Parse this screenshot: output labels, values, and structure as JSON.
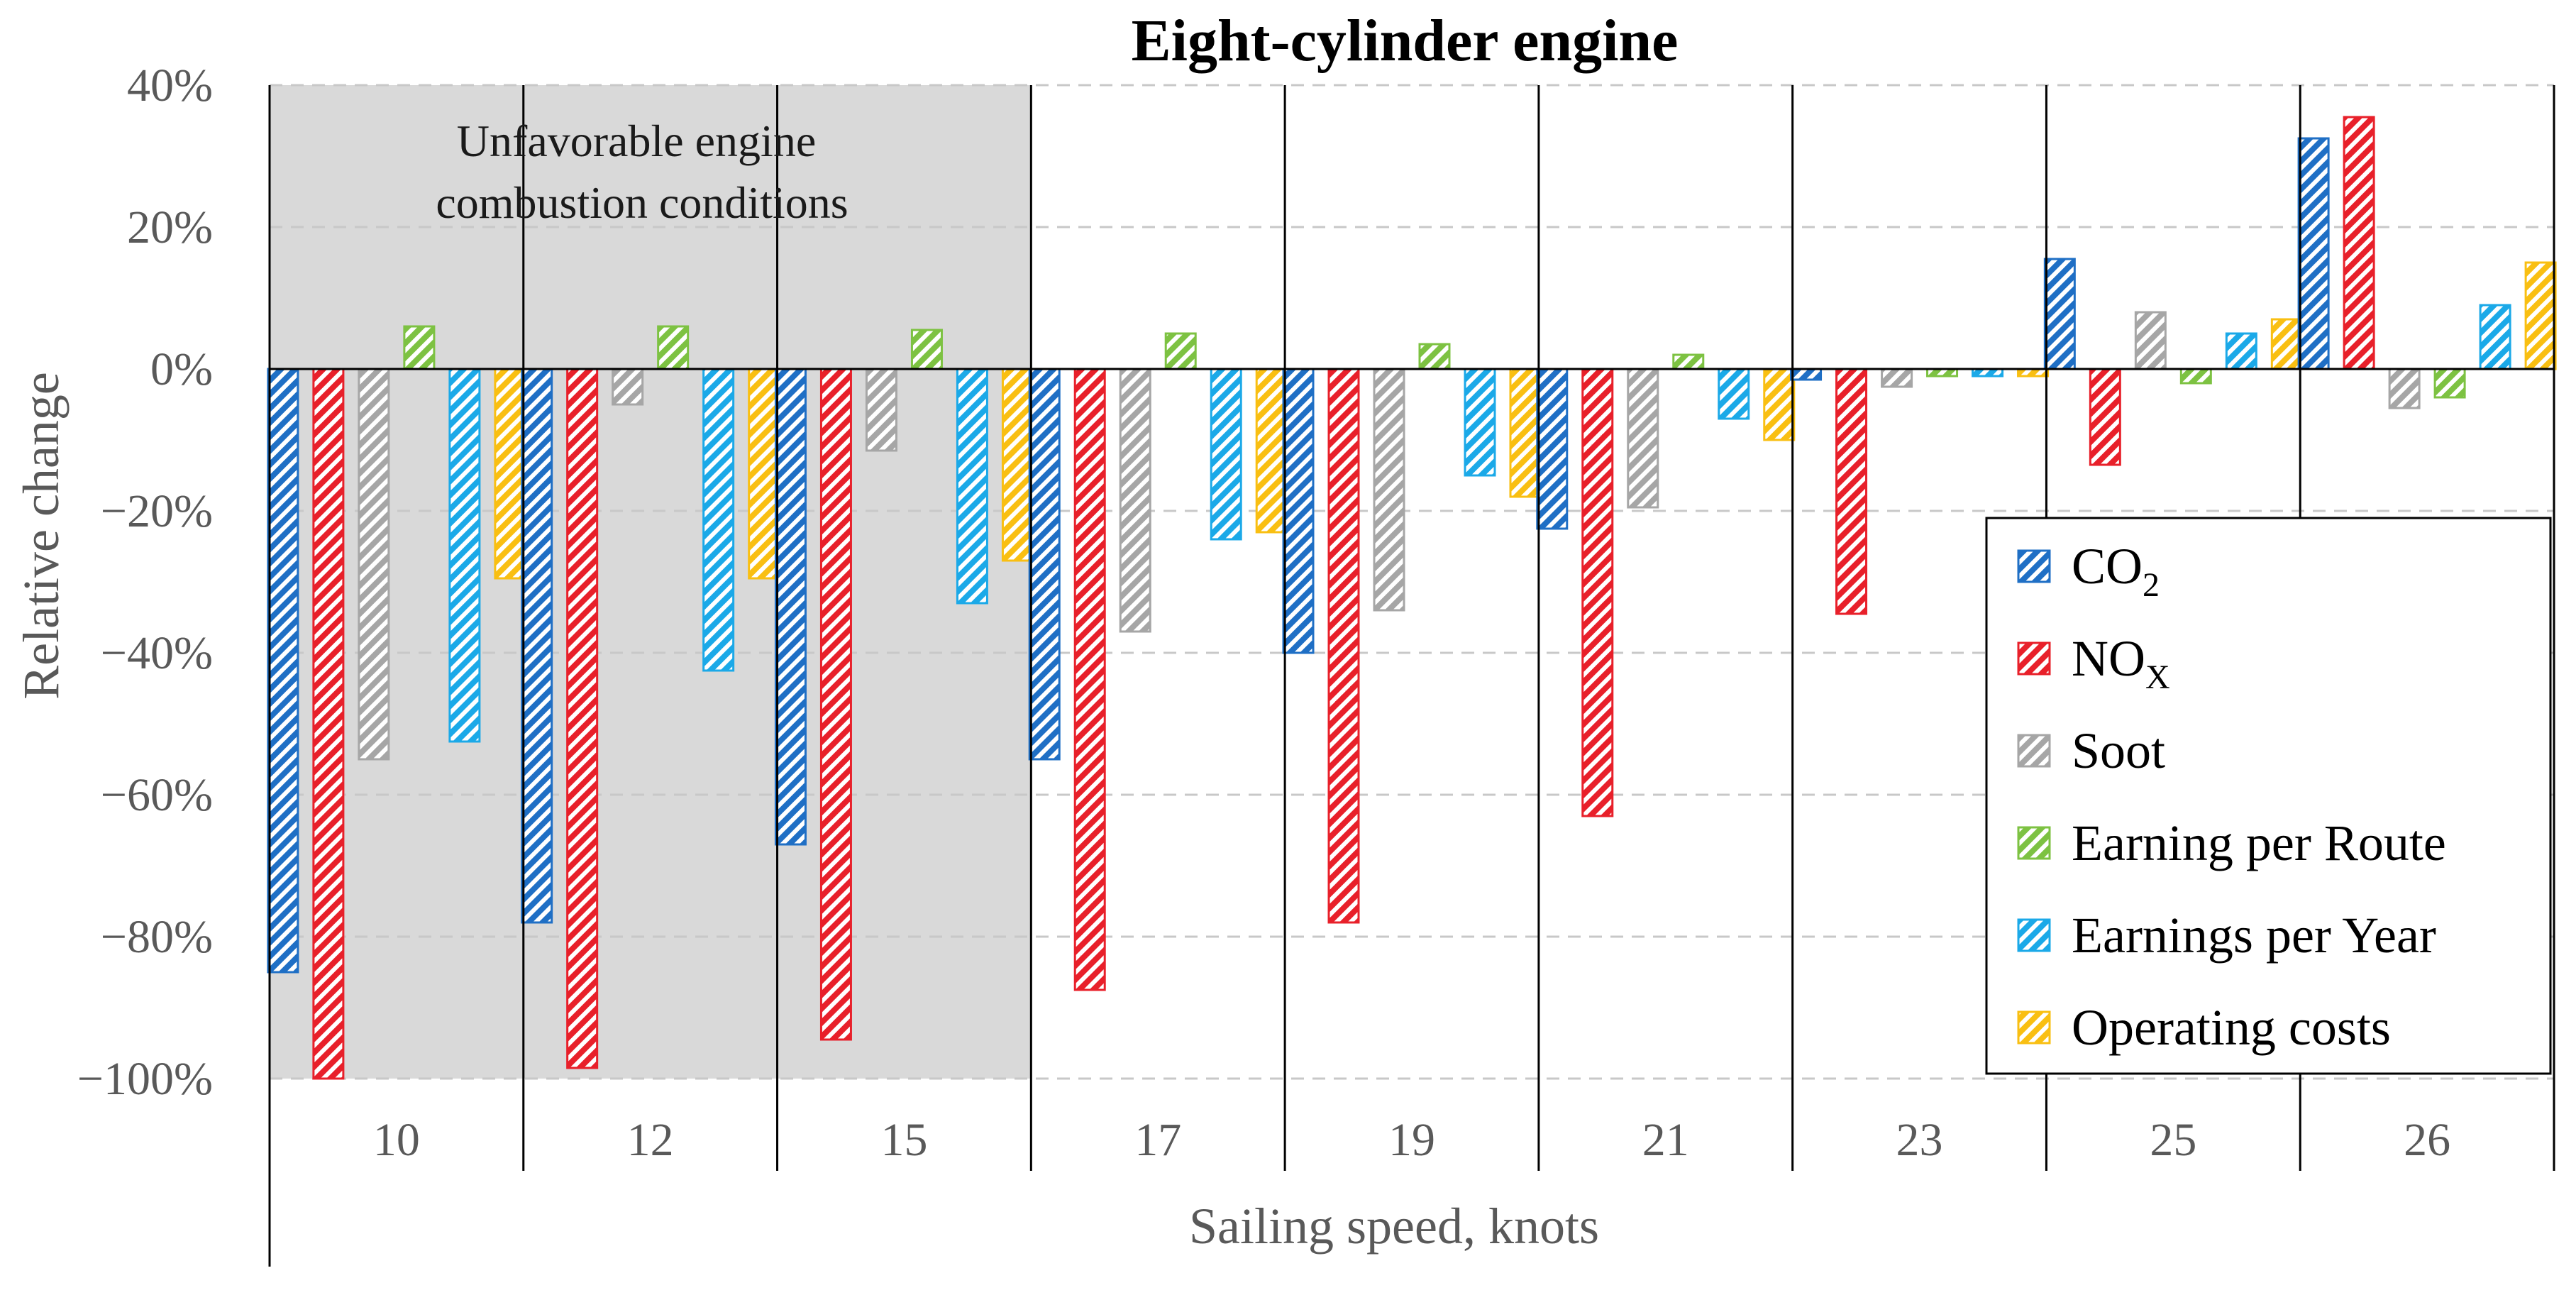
{
  "chart_data": {
    "type": "bar",
    "title": "Eight-cylinder engine",
    "xlabel": "Sailing speed, knots",
    "ylabel": "Relative change",
    "ylim": [
      -100,
      40
    ],
    "yticks": [
      40,
      20,
      0,
      -20,
      -40,
      -60,
      -80,
      -100
    ],
    "ytick_labels": [
      "40%",
      "20%",
      "0%",
      "−20%",
      "−40%",
      "−60%",
      "−80%",
      "−100%"
    ],
    "grid": true,
    "categories": [
      "10",
      "12",
      "15",
      "17",
      "19",
      "21",
      "23",
      "25",
      "26"
    ],
    "annotation": {
      "lines": [
        "Unfavorable engine",
        "combustion conditions"
      ],
      "shaded_categories": [
        "10",
        "12",
        "15"
      ]
    },
    "legend_position": "right",
    "series": [
      {
        "name": "CO",
        "sub": "2",
        "color": "#1f6fc5",
        "values": [
          -85,
          -78,
          -67,
          -55,
          -40,
          -22.5,
          -1.5,
          15.5,
          32.5
        ]
      },
      {
        "name": "NO",
        "sub": "X",
        "color": "#e8202a",
        "values": [
          -100,
          -98.5,
          -94.5,
          -87.5,
          -78,
          -63,
          -34.5,
          -13.5,
          35.5
        ]
      },
      {
        "name": "Soot",
        "sub": "",
        "color": "#a6a6a6",
        "values": [
          -55,
          -5,
          -11.5,
          -37,
          -34,
          -19.5,
          -2.5,
          8,
          -5.5
        ]
      },
      {
        "name": "Earning per Route",
        "sub": "",
        "color": "#7dc242",
        "values": [
          6,
          6,
          5.5,
          5,
          3.5,
          2,
          -1,
          -2,
          -4
        ]
      },
      {
        "name": "Earnings per Year",
        "sub": "",
        "color": "#1ba9e8",
        "values": [
          -52.5,
          -42.5,
          -33,
          -24,
          -15,
          -7,
          -1,
          5,
          9
        ]
      },
      {
        "name": "Operating costs",
        "sub": "",
        "color": "#f9bf12",
        "values": [
          -29.5,
          -29.5,
          -27,
          -23,
          -18,
          -10,
          -1,
          7,
          15
        ]
      }
    ]
  }
}
